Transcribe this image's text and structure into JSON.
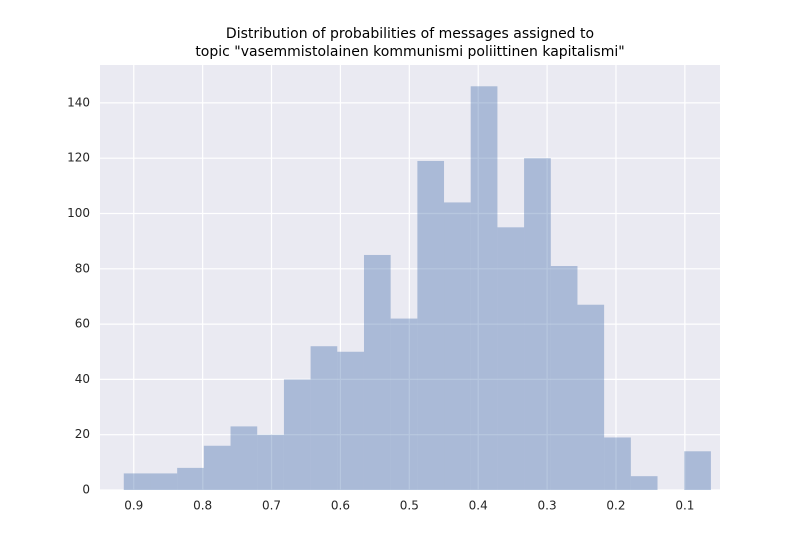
{
  "chart_data": {
    "type": "histogram",
    "title": [
      "Distribution of probabilities of messages assigned to",
      "topic \"vasemmistolainen kommunismi poliittinen kapitalismi\""
    ],
    "bins": [
      0.0622,
      0.1009,
      0.1397,
      0.1784,
      0.2172,
      0.2559,
      0.2946,
      0.3334,
      0.3721,
      0.4109,
      0.4496,
      0.4883,
      0.5271,
      0.5658,
      0.6046,
      0.6433,
      0.682,
      0.7208,
      0.7595,
      0.7983,
      0.837,
      0.8757,
      0.9145
    ],
    "values": [
      14,
      0,
      5,
      19,
      67,
      81,
      120,
      95,
      146,
      104,
      119,
      62,
      85,
      50,
      52,
      40,
      20,
      23,
      16,
      8,
      6,
      6
    ],
    "color": "#4c72b0",
    "opacity": 0.4,
    "xlim": [
      0.949,
      0.049
    ],
    "xticks": [
      0.9,
      0.8,
      0.7,
      0.6,
      0.5,
      0.4,
      0.3,
      0.2,
      0.1
    ],
    "ylim": [
      0,
      153.7
    ],
    "yticks": [
      0,
      20,
      40,
      60,
      80,
      100,
      120,
      140
    ],
    "grid": true,
    "background": "#eaeaf2"
  }
}
